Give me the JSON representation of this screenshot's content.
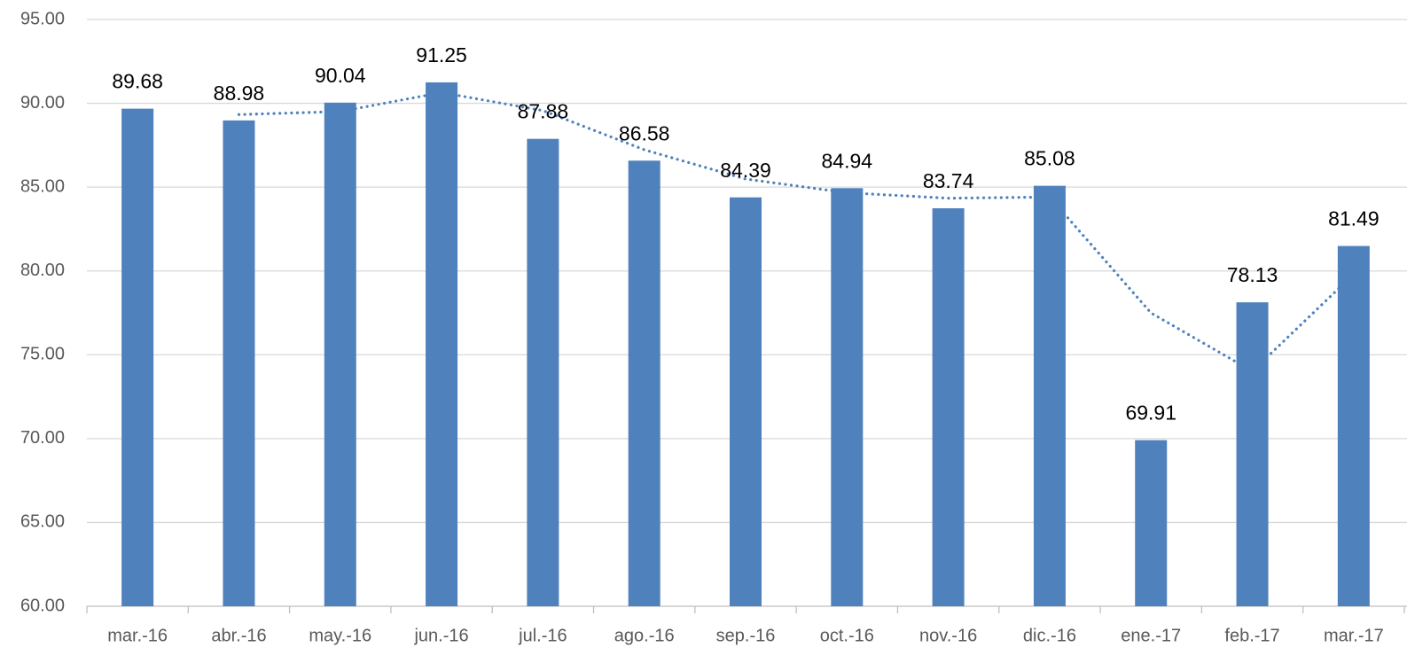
{
  "chart_data": {
    "type": "bar",
    "categories": [
      "mar.-16",
      "abr.-16",
      "may.-16",
      "jun.-16",
      "jul.-16",
      "ago.-16",
      "sep.-16",
      "oct.-16",
      "nov.-16",
      "dic.-16",
      "ene.-17",
      "feb.-17",
      "mar.-17"
    ],
    "values": [
      89.68,
      88.98,
      90.04,
      91.25,
      87.88,
      86.58,
      84.39,
      84.94,
      83.74,
      85.08,
      69.91,
      78.13,
      81.49
    ],
    "color": "#4f81bd",
    "trend": {
      "values": [
        null,
        89.33,
        89.51,
        90.645,
        89.565,
        87.23,
        85.485,
        84.665,
        84.34,
        84.41,
        77.495,
        74.02,
        79.81
      ],
      "color": "#4f81bd",
      "style": "dotted"
    },
    "ylim": [
      60,
      95
    ],
    "yticks": [
      {
        "value": 60,
        "label": "60.00"
      },
      {
        "value": 65,
        "label": "65.00"
      },
      {
        "value": 70,
        "label": "70.00"
      },
      {
        "value": 75,
        "label": "75.00"
      },
      {
        "value": 80,
        "label": "80.00"
      },
      {
        "value": 85,
        "label": "85.00"
      },
      {
        "value": 90,
        "label": "90.00"
      },
      {
        "value": 95,
        "label": "95.00"
      }
    ],
    "grid": true
  }
}
